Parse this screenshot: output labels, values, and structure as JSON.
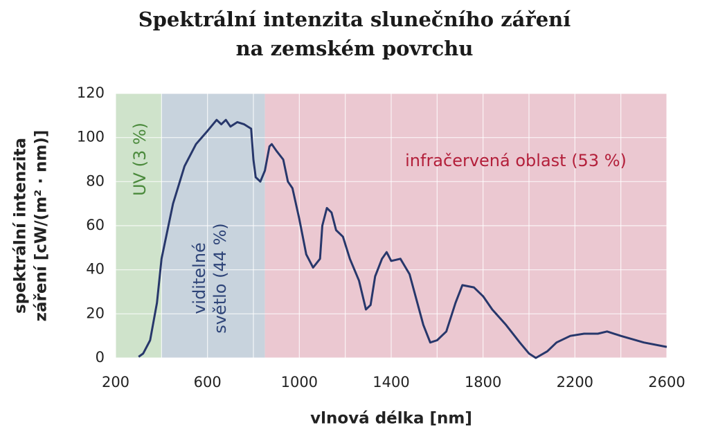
{
  "chart_data": {
    "type": "line",
    "title": [
      "Spektrální intenzita slunečního záření",
      "na zemském povrchu"
    ],
    "xlabel": "vlnová délka [nm]",
    "ylabel": [
      "spektrální intenzita",
      "záření [cW/(m² · nm)]"
    ],
    "xlim": [
      200,
      2600
    ],
    "ylim": [
      0,
      120
    ],
    "xticks": [
      200,
      600,
      1000,
      1400,
      1800,
      2200,
      2600
    ],
    "xgrid": [
      400,
      800,
      1200,
      1600,
      2000,
      2400
    ],
    "yticks": [
      0,
      20,
      40,
      60,
      80,
      100,
      120
    ],
    "grid": true,
    "regions": [
      {
        "label": [
          "UV (3 %)"
        ],
        "from": 200,
        "to": 400,
        "color": "#cfe3cb",
        "text_color": "#4b8a3c",
        "rotated": true
      },
      {
        "label": [
          "viditelné",
          "světlo (44 %)"
        ],
        "from": 400,
        "to": 850,
        "color": "#c8d3dd",
        "text_color": "#2e4478",
        "rotated": true
      },
      {
        "label": [
          "infračervená oblast (53 %)"
        ],
        "from": 850,
        "to": 2600,
        "color": "#ebc8d1",
        "text_color": "#b31f3a",
        "rotated": false
      }
    ],
    "color": "#27376b",
    "x": [
      300,
      320,
      350,
      380,
      400,
      450,
      500,
      550,
      600,
      640,
      660,
      680,
      700,
      730,
      760,
      790,
      800,
      810,
      830,
      850,
      870,
      880,
      900,
      930,
      950,
      970,
      1000,
      1030,
      1060,
      1090,
      1100,
      1120,
      1140,
      1160,
      1190,
      1220,
      1260,
      1290,
      1310,
      1330,
      1360,
      1380,
      1400,
      1440,
      1480,
      1540,
      1570,
      1600,
      1640,
      1680,
      1710,
      1760,
      1800,
      1840,
      1900,
      1960,
      2000,
      2030,
      2080,
      2120,
      2180,
      2240,
      2300,
      2340,
      2400,
      2500,
      2600
    ],
    "values": [
      0.5,
      2,
      8,
      25,
      45,
      70,
      87,
      97,
      103,
      108,
      106,
      108,
      105,
      107,
      106,
      104,
      90,
      82,
      80,
      85,
      96,
      97,
      94,
      90,
      80,
      77,
      63,
      47,
      41,
      45,
      60,
      68,
      66,
      58,
      55,
      45,
      35,
      22,
      24,
      37,
      45,
      48,
      44,
      45,
      38,
      15,
      7,
      8,
      12,
      25,
      33,
      32,
      28,
      22,
      15,
      7,
      2,
      0,
      3,
      7,
      10,
      11,
      11,
      12,
      10,
      7,
      5
    ]
  }
}
